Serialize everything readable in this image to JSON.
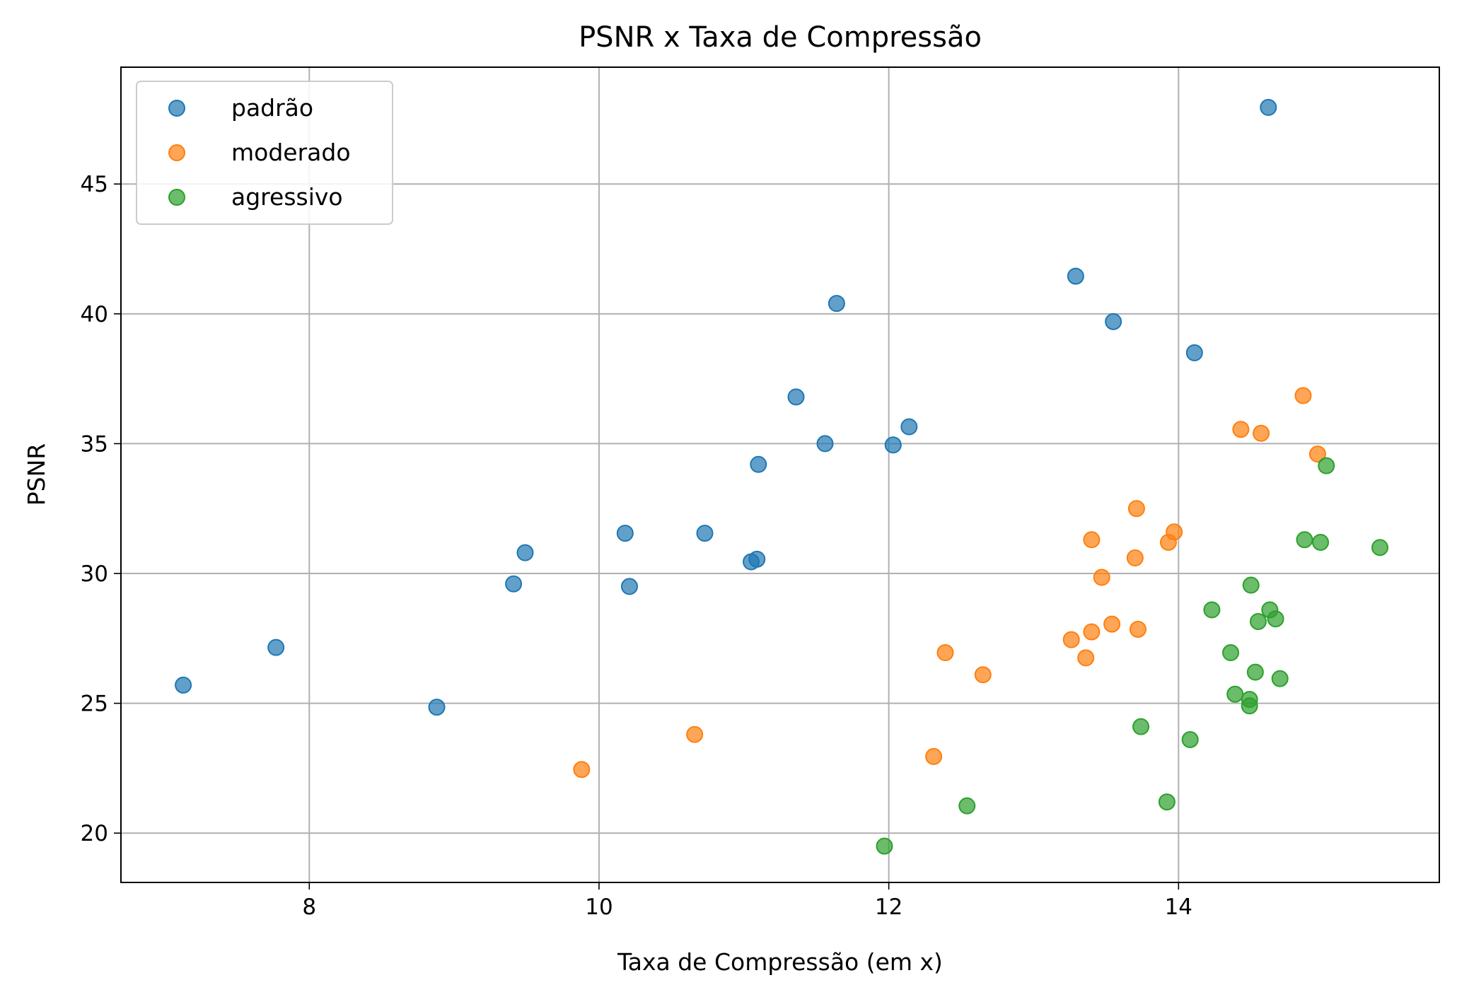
{
  "chart_data": {
    "type": "scatter",
    "title": "PSNR x Taxa de Compressão",
    "xlabel": "Taxa de Compressão (em x)",
    "ylabel": "PSNR",
    "xlim": [
      6.7,
      15.8
    ],
    "ylim": [
      18.1,
      49.5
    ],
    "xticks": [
      8,
      10,
      12,
      14
    ],
    "yticks": [
      20,
      25,
      30,
      35,
      40,
      45
    ],
    "grid": true,
    "legend_position": "top-left",
    "series": [
      {
        "name": "padrão",
        "color": "#1f77b4",
        "points": [
          [
            7.13,
            25.7
          ],
          [
            7.77,
            27.15
          ],
          [
            8.88,
            24.85
          ],
          [
            9.41,
            29.6
          ],
          [
            9.49,
            30.8
          ],
          [
            10.18,
            31.55
          ],
          [
            10.21,
            29.5
          ],
          [
            10.73,
            31.55
          ],
          [
            11.05,
            30.45
          ],
          [
            11.09,
            30.55
          ],
          [
            11.1,
            34.2
          ],
          [
            11.36,
            36.8
          ],
          [
            11.56,
            35.0
          ],
          [
            11.64,
            40.4
          ],
          [
            12.03,
            34.95
          ],
          [
            12.14,
            35.65
          ],
          [
            13.29,
            41.45
          ],
          [
            13.55,
            39.7
          ],
          [
            14.11,
            38.5
          ],
          [
            14.62,
            47.95
          ]
        ]
      },
      {
        "name": "moderado",
        "color": "#ff7f0e",
        "points": [
          [
            9.88,
            22.45
          ],
          [
            10.66,
            23.8
          ],
          [
            12.31,
            22.95
          ],
          [
            12.39,
            26.95
          ],
          [
            12.65,
            26.1
          ],
          [
            13.26,
            27.45
          ],
          [
            13.36,
            26.75
          ],
          [
            13.4,
            31.3
          ],
          [
            13.4,
            27.75
          ],
          [
            13.47,
            29.85
          ],
          [
            13.54,
            28.05
          ],
          [
            13.7,
            30.6
          ],
          [
            13.71,
            32.5
          ],
          [
            13.72,
            27.85
          ],
          [
            13.93,
            31.2
          ],
          [
            13.97,
            31.6
          ],
          [
            14.43,
            35.55
          ],
          [
            14.57,
            35.4
          ],
          [
            14.86,
            36.85
          ],
          [
            14.96,
            34.6
          ]
        ]
      },
      {
        "name": "agressivo",
        "color": "#2ca02c",
        "points": [
          [
            11.97,
            19.5
          ],
          [
            12.54,
            21.05
          ],
          [
            13.74,
            24.1
          ],
          [
            13.92,
            21.2
          ],
          [
            14.08,
            23.6
          ],
          [
            14.23,
            28.6
          ],
          [
            14.36,
            26.95
          ],
          [
            14.39,
            25.35
          ],
          [
            14.49,
            25.15
          ],
          [
            14.49,
            24.9
          ],
          [
            14.5,
            29.55
          ],
          [
            14.53,
            26.2
          ],
          [
            14.55,
            28.15
          ],
          [
            14.63,
            28.6
          ],
          [
            14.67,
            28.25
          ],
          [
            14.7,
            25.95
          ],
          [
            14.87,
            31.3
          ],
          [
            14.98,
            31.2
          ],
          [
            15.02,
            34.15
          ],
          [
            15.39,
            31.0
          ]
        ]
      }
    ]
  }
}
